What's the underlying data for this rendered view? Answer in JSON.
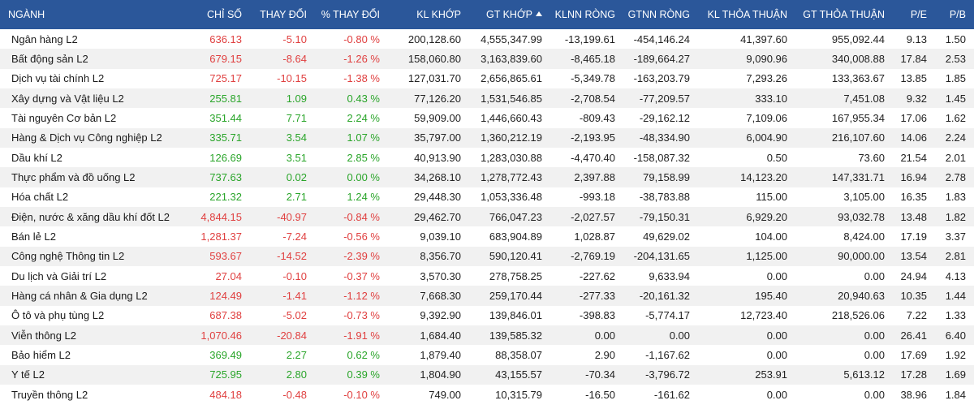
{
  "colors": {
    "header_bg": "#2b579a",
    "down": "#e04040",
    "up": "#2aa52a",
    "neutral": "#222222"
  },
  "columns": [
    "NGÀNH",
    "CHỈ SỐ",
    "THAY ĐỔI",
    "% THAY ĐỔI",
    "KL KHỚP",
    "GT KHỚP",
    "KLNN RÒNG",
    "GTNN RÒNG",
    "KL THỎA THUẬN",
    "GT THỎA THUẬN",
    "P/E",
    "P/B"
  ],
  "sorted_column_icon": "sort-up-icon",
  "rows": [
    {
      "name": "Ngân hàng L2",
      "index": "636.13",
      "change": "-5.10",
      "pct": "-0.80 %",
      "dir": "down",
      "kl_khop": "200,128.60",
      "gt_khop": "4,555,347.99",
      "klnn": "-13,199.61",
      "gtnn": "-454,146.24",
      "kl_tt": "41,397.60",
      "gt_tt": "955,092.44",
      "pe": "9.13",
      "pb": "1.50"
    },
    {
      "name": "Bất động sản L2",
      "index": "679.15",
      "change": "-8.64",
      "pct": "-1.26 %",
      "dir": "down",
      "kl_khop": "158,060.80",
      "gt_khop": "3,163,839.60",
      "klnn": "-8,465.18",
      "gtnn": "-189,664.27",
      "kl_tt": "9,090.96",
      "gt_tt": "340,008.88",
      "pe": "17.84",
      "pb": "2.53"
    },
    {
      "name": "Dịch vụ tài chính L2",
      "index": "725.17",
      "change": "-10.15",
      "pct": "-1.38 %",
      "dir": "down",
      "kl_khop": "127,031.70",
      "gt_khop": "2,656,865.61",
      "klnn": "-5,349.78",
      "gtnn": "-163,203.79",
      "kl_tt": "7,293.26",
      "gt_tt": "133,363.67",
      "pe": "13.85",
      "pb": "1.85"
    },
    {
      "name": "Xây dựng và Vật liệu L2",
      "index": "255.81",
      "change": "1.09",
      "pct": "0.43 %",
      "dir": "up",
      "kl_khop": "77,126.20",
      "gt_khop": "1,531,546.85",
      "klnn": "-2,708.54",
      "gtnn": "-77,209.57",
      "kl_tt": "333.10",
      "gt_tt": "7,451.08",
      "pe": "9.32",
      "pb": "1.45"
    },
    {
      "name": "Tài nguyên Cơ bản L2",
      "index": "351.44",
      "change": "7.71",
      "pct": "2.24 %",
      "dir": "up",
      "kl_khop": "59,909.00",
      "gt_khop": "1,446,660.43",
      "klnn": "-809.43",
      "gtnn": "-29,162.12",
      "kl_tt": "7,109.06",
      "gt_tt": "167,955.34",
      "pe": "17.06",
      "pb": "1.62"
    },
    {
      "name": "Hàng & Dịch vụ Công nghiệp L2",
      "index": "335.71",
      "change": "3.54",
      "pct": "1.07 %",
      "dir": "up",
      "kl_khop": "35,797.00",
      "gt_khop": "1,360,212.19",
      "klnn": "-2,193.95",
      "gtnn": "-48,334.90",
      "kl_tt": "6,004.90",
      "gt_tt": "216,107.60",
      "pe": "14.06",
      "pb": "2.24"
    },
    {
      "name": "Dầu khí L2",
      "index": "126.69",
      "change": "3.51",
      "pct": "2.85 %",
      "dir": "up",
      "kl_khop": "40,913.90",
      "gt_khop": "1,283,030.88",
      "klnn": "-4,470.40",
      "gtnn": "-158,087.32",
      "kl_tt": "0.50",
      "gt_tt": "73.60",
      "pe": "21.54",
      "pb": "2.01"
    },
    {
      "name": "Thực phẩm và đồ uống L2",
      "index": "737.63",
      "change": "0.02",
      "pct": "0.00 %",
      "dir": "up",
      "kl_khop": "34,268.10",
      "gt_khop": "1,278,772.43",
      "klnn": "2,397.88",
      "gtnn": "79,158.99",
      "kl_tt": "14,123.20",
      "gt_tt": "147,331.71",
      "pe": "16.94",
      "pb": "2.78"
    },
    {
      "name": "Hóa chất L2",
      "index": "221.32",
      "change": "2.71",
      "pct": "1.24 %",
      "dir": "up",
      "kl_khop": "29,448.30",
      "gt_khop": "1,053,336.48",
      "klnn": "-993.18",
      "gtnn": "-38,783.88",
      "kl_tt": "115.00",
      "gt_tt": "3,105.00",
      "pe": "16.35",
      "pb": "1.83"
    },
    {
      "name": "Điện, nước & xăng dầu khí đốt L2",
      "index": "4,844.15",
      "change": "-40.97",
      "pct": "-0.84 %",
      "dir": "down",
      "kl_khop": "29,462.70",
      "gt_khop": "766,047.23",
      "klnn": "-2,027.57",
      "gtnn": "-79,150.31",
      "kl_tt": "6,929.20",
      "gt_tt": "93,032.78",
      "pe": "13.48",
      "pb": "1.82"
    },
    {
      "name": "Bán lẻ L2",
      "index": "1,281.37",
      "change": "-7.24",
      "pct": "-0.56 %",
      "dir": "down",
      "kl_khop": "9,039.10",
      "gt_khop": "683,904.89",
      "klnn": "1,028.87",
      "gtnn": "49,629.02",
      "kl_tt": "104.00",
      "gt_tt": "8,424.00",
      "pe": "17.19",
      "pb": "3.37"
    },
    {
      "name": "Công nghệ Thông tin L2",
      "index": "593.67",
      "change": "-14.52",
      "pct": "-2.39 %",
      "dir": "down",
      "kl_khop": "8,356.70",
      "gt_khop": "590,120.41",
      "klnn": "-2,769.19",
      "gtnn": "-204,131.65",
      "kl_tt": "1,125.00",
      "gt_tt": "90,000.00",
      "pe": "13.54",
      "pb": "2.81"
    },
    {
      "name": "Du lịch và Giải trí L2",
      "index": "27.04",
      "change": "-0.10",
      "pct": "-0.37 %",
      "dir": "down",
      "kl_khop": "3,570.30",
      "gt_khop": "278,758.25",
      "klnn": "-227.62",
      "gtnn": "9,633.94",
      "kl_tt": "0.00",
      "gt_tt": "0.00",
      "pe": "24.94",
      "pb": "4.13"
    },
    {
      "name": "Hàng cá nhân & Gia dụng L2",
      "index": "124.49",
      "change": "-1.41",
      "pct": "-1.12 %",
      "dir": "down",
      "kl_khop": "7,668.30",
      "gt_khop": "259,170.44",
      "klnn": "-277.33",
      "gtnn": "-20,161.32",
      "kl_tt": "195.40",
      "gt_tt": "20,940.63",
      "pe": "10.35",
      "pb": "1.44"
    },
    {
      "name": "Ô tô và phụ tùng L2",
      "index": "687.38",
      "change": "-5.02",
      "pct": "-0.73 %",
      "dir": "down",
      "kl_khop": "9,392.90",
      "gt_khop": "139,846.01",
      "klnn": "-398.83",
      "gtnn": "-5,774.17",
      "kl_tt": "12,723.40",
      "gt_tt": "218,526.06",
      "pe": "7.22",
      "pb": "1.33"
    },
    {
      "name": "Viễn thông L2",
      "index": "1,070.46",
      "change": "-20.84",
      "pct": "-1.91 %",
      "dir": "down",
      "kl_khop": "1,684.40",
      "gt_khop": "139,585.32",
      "klnn": "0.00",
      "gtnn": "0.00",
      "kl_tt": "0.00",
      "gt_tt": "0.00",
      "pe": "26.41",
      "pb": "6.40"
    },
    {
      "name": "Bảo hiểm L2",
      "index": "369.49",
      "change": "2.27",
      "pct": "0.62 %",
      "dir": "up",
      "kl_khop": "1,879.40",
      "gt_khop": "88,358.07",
      "klnn": "2.90",
      "gtnn": "-1,167.62",
      "kl_tt": "0.00",
      "gt_tt": "0.00",
      "pe": "17.69",
      "pb": "1.92"
    },
    {
      "name": "Y tế L2",
      "index": "725.95",
      "change": "2.80",
      "pct": "0.39 %",
      "dir": "up",
      "kl_khop": "1,804.90",
      "gt_khop": "43,155.57",
      "klnn": "-70.34",
      "gtnn": "-3,796.72",
      "kl_tt": "253.91",
      "gt_tt": "5,613.12",
      "pe": "17.28",
      "pb": "1.69"
    },
    {
      "name": "Truyền thông L2",
      "index": "484.18",
      "change": "-0.48",
      "pct": "-0.10 %",
      "dir": "down",
      "kl_khop": "749.00",
      "gt_khop": "10,315.79",
      "klnn": "-16.50",
      "gtnn": "-161.62",
      "kl_tt": "0.00",
      "gt_tt": "0.00",
      "pe": "38.96",
      "pb": "1.84"
    }
  ]
}
